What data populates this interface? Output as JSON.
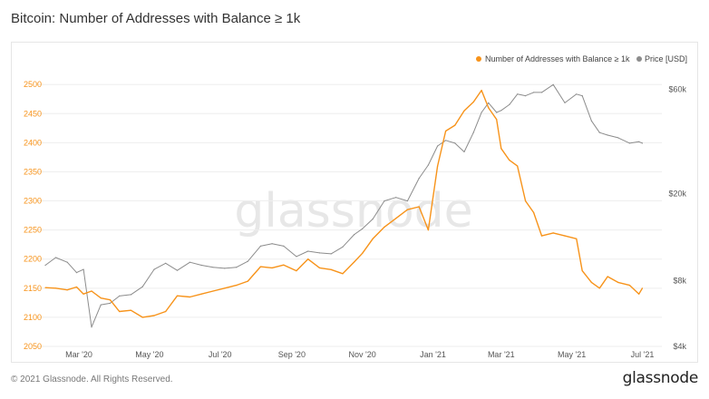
{
  "title": "Bitcoin: Number of Addresses with Balance ≥ 1k",
  "footer": {
    "copyright": "© 2021 Glassnode. All Rights Reserved.",
    "logo": "glassnode"
  },
  "watermark": "glassnode",
  "colors": {
    "addresses": "#f7931a",
    "price": "#8c8c8c",
    "grid": "#eeeeee"
  },
  "chart_data": {
    "type": "line",
    "x_ticks": [
      "Mar '20",
      "May '20",
      "Jul '20",
      "Sep '20",
      "Nov '20",
      "Jan '21",
      "Mar '21",
      "May '21",
      "Jul '21"
    ],
    "y_left": {
      "ticks": [
        "2050",
        "2100",
        "2150",
        "2200",
        "2250",
        "2300",
        "2350",
        "2400",
        "2450",
        "2500"
      ],
      "range": [
        2050,
        2505
      ]
    },
    "y_right": {
      "ticks": [
        "$4k",
        "$8k",
        "$20k",
        "$60k"
      ],
      "scale": "log",
      "range": [
        4000,
        65000
      ]
    },
    "legend": {
      "position": "top-right",
      "entries": [
        "Number of Addresses with Balance ≥ 1k",
        "Price [USD]"
      ]
    },
    "grid": "horizontal",
    "series": [
      {
        "name": "Number of Addresses with Balance ≥ 1k",
        "axis": "left",
        "points": [
          [
            "2020-02-01",
            2151
          ],
          [
            "2020-02-10",
            2150
          ],
          [
            "2020-02-20",
            2147
          ],
          [
            "2020-02-28",
            2152
          ],
          [
            "2020-03-05",
            2140
          ],
          [
            "2020-03-12",
            2145
          ],
          [
            "2020-03-20",
            2133
          ],
          [
            "2020-03-28",
            2130
          ],
          [
            "2020-04-05",
            2110
          ],
          [
            "2020-04-15",
            2112
          ],
          [
            "2020-04-25",
            2100
          ],
          [
            "2020-05-05",
            2103
          ],
          [
            "2020-05-15",
            2110
          ],
          [
            "2020-05-25",
            2137
          ],
          [
            "2020-06-05",
            2135
          ],
          [
            "2020-06-15",
            2140
          ],
          [
            "2020-06-25",
            2145
          ],
          [
            "2020-07-05",
            2150
          ],
          [
            "2020-07-15",
            2155
          ],
          [
            "2020-07-25",
            2162
          ],
          [
            "2020-08-05",
            2187
          ],
          [
            "2020-08-15",
            2185
          ],
          [
            "2020-08-25",
            2190
          ],
          [
            "2020-09-05",
            2180
          ],
          [
            "2020-09-15",
            2200
          ],
          [
            "2020-09-25",
            2185
          ],
          [
            "2020-10-05",
            2182
          ],
          [
            "2020-10-15",
            2175
          ],
          [
            "2020-10-25",
            2195
          ],
          [
            "2020-11-01",
            2210
          ],
          [
            "2020-11-10",
            2235
          ],
          [
            "2020-11-20",
            2255
          ],
          [
            "2020-11-30",
            2270
          ],
          [
            "2020-12-10",
            2285
          ],
          [
            "2020-12-20",
            2290
          ],
          [
            "2020-12-28",
            2250
          ],
          [
            "2021-01-05",
            2360
          ],
          [
            "2021-01-12",
            2420
          ],
          [
            "2021-01-20",
            2430
          ],
          [
            "2021-01-28",
            2455
          ],
          [
            "2021-02-05",
            2470
          ],
          [
            "2021-02-12",
            2490
          ],
          [
            "2021-02-18",
            2460
          ],
          [
            "2021-02-25",
            2440
          ],
          [
            "2021-03-01",
            2390
          ],
          [
            "2021-03-08",
            2370
          ],
          [
            "2021-03-15",
            2360
          ],
          [
            "2021-03-22",
            2300
          ],
          [
            "2021-03-29",
            2280
          ],
          [
            "2021-04-05",
            2240
          ],
          [
            "2021-04-15",
            2245
          ],
          [
            "2021-04-25",
            2240
          ],
          [
            "2021-05-05",
            2235
          ],
          [
            "2021-05-10",
            2180
          ],
          [
            "2021-05-18",
            2160
          ],
          [
            "2021-05-25",
            2150
          ],
          [
            "2021-06-01",
            2170
          ],
          [
            "2021-06-10",
            2160
          ],
          [
            "2021-06-20",
            2155
          ],
          [
            "2021-06-28",
            2140
          ],
          [
            "2021-07-01",
            2150
          ]
        ]
      },
      {
        "name": "Price [USD]",
        "axis": "right",
        "points": [
          [
            "2020-02-01",
            9400
          ],
          [
            "2020-02-10",
            10200
          ],
          [
            "2020-02-20",
            9700
          ],
          [
            "2020-02-28",
            8700
          ],
          [
            "2020-03-05",
            9000
          ],
          [
            "2020-03-12",
            4900
          ],
          [
            "2020-03-20",
            6200
          ],
          [
            "2020-03-28",
            6300
          ],
          [
            "2020-04-05",
            6800
          ],
          [
            "2020-04-15",
            6900
          ],
          [
            "2020-04-25",
            7500
          ],
          [
            "2020-05-05",
            9000
          ],
          [
            "2020-05-15",
            9600
          ],
          [
            "2020-05-25",
            8900
          ],
          [
            "2020-06-05",
            9700
          ],
          [
            "2020-06-15",
            9400
          ],
          [
            "2020-06-25",
            9200
          ],
          [
            "2020-07-05",
            9100
          ],
          [
            "2020-07-15",
            9200
          ],
          [
            "2020-07-25",
            9800
          ],
          [
            "2020-08-05",
            11500
          ],
          [
            "2020-08-15",
            11800
          ],
          [
            "2020-08-25",
            11500
          ],
          [
            "2020-09-05",
            10300
          ],
          [
            "2020-09-15",
            10900
          ],
          [
            "2020-09-25",
            10700
          ],
          [
            "2020-10-05",
            10600
          ],
          [
            "2020-10-15",
            11400
          ],
          [
            "2020-10-25",
            13000
          ],
          [
            "2020-11-01",
            13800
          ],
          [
            "2020-11-10",
            15300
          ],
          [
            "2020-11-20",
            18500
          ],
          [
            "2020-11-30",
            19200
          ],
          [
            "2020-12-10",
            18500
          ],
          [
            "2020-12-20",
            23500
          ],
          [
            "2020-12-28",
            27000
          ],
          [
            "2021-01-05",
            33000
          ],
          [
            "2021-01-12",
            35000
          ],
          [
            "2021-01-20",
            34000
          ],
          [
            "2021-01-28",
            31000
          ],
          [
            "2021-02-05",
            38000
          ],
          [
            "2021-02-12",
            47000
          ],
          [
            "2021-02-18",
            52000
          ],
          [
            "2021-02-25",
            47000
          ],
          [
            "2021-03-01",
            48000
          ],
          [
            "2021-03-08",
            51000
          ],
          [
            "2021-03-15",
            57000
          ],
          [
            "2021-03-22",
            56000
          ],
          [
            "2021-03-29",
            58000
          ],
          [
            "2021-04-05",
            58000
          ],
          [
            "2021-04-15",
            63000
          ],
          [
            "2021-04-25",
            52000
          ],
          [
            "2021-05-05",
            57000
          ],
          [
            "2021-05-10",
            56000
          ],
          [
            "2021-05-18",
            43000
          ],
          [
            "2021-05-25",
            38000
          ],
          [
            "2021-06-01",
            37000
          ],
          [
            "2021-06-10",
            36000
          ],
          [
            "2021-06-20",
            34000
          ],
          [
            "2021-06-28",
            34500
          ],
          [
            "2021-07-01",
            34000
          ]
        ]
      }
    ]
  }
}
